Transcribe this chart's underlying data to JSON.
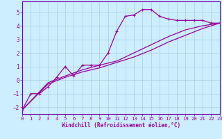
{
  "xlabel": "Windchill (Refroidissement éolien,°C)",
  "bg_color": "#cceeff",
  "grid_color": "#aaccdd",
  "line_color": "#990099",
  "spine_color": "#7700aa",
  "xlim": [
    0,
    23
  ],
  "ylim": [
    -2.5,
    5.8
  ],
  "xticks": [
    0,
    1,
    2,
    3,
    4,
    5,
    6,
    7,
    8,
    9,
    10,
    11,
    12,
    13,
    14,
    15,
    16,
    17,
    18,
    19,
    20,
    21,
    22,
    23
  ],
  "yticks": [
    -2,
    -1,
    0,
    1,
    2,
    3,
    4,
    5
  ],
  "series1": [
    [
      0,
      -2.2
    ],
    [
      1,
      -1.0
    ],
    [
      2,
      -1.0
    ],
    [
      3,
      -0.5
    ],
    [
      4,
      0.2
    ],
    [
      5,
      1.0
    ],
    [
      6,
      0.3
    ],
    [
      7,
      1.1
    ],
    [
      8,
      1.1
    ],
    [
      9,
      1.1
    ],
    [
      10,
      2.0
    ],
    [
      11,
      3.6
    ],
    [
      12,
      4.7
    ],
    [
      13,
      4.8
    ],
    [
      14,
      5.2
    ],
    [
      15,
      5.2
    ],
    [
      16,
      4.7
    ],
    [
      17,
      4.5
    ],
    [
      18,
      4.4
    ],
    [
      19,
      4.4
    ],
    [
      20,
      4.4
    ],
    [
      21,
      4.4
    ],
    [
      22,
      4.2
    ],
    [
      23,
      4.2
    ]
  ],
  "series2": [
    [
      0,
      -2.2
    ],
    [
      3,
      -0.3
    ],
    [
      5,
      0.2
    ],
    [
      7,
      0.6
    ],
    [
      9,
      0.9
    ],
    [
      11,
      1.3
    ],
    [
      13,
      1.7
    ],
    [
      15,
      2.2
    ],
    [
      17,
      2.8
    ],
    [
      19,
      3.3
    ],
    [
      21,
      3.8
    ],
    [
      23,
      4.2
    ]
  ],
  "series3": [
    [
      0,
      -2.2
    ],
    [
      3,
      -0.2
    ],
    [
      5,
      0.3
    ],
    [
      7,
      0.75
    ],
    [
      9,
      1.1
    ],
    [
      11,
      1.4
    ],
    [
      13,
      2.0
    ],
    [
      15,
      2.6
    ],
    [
      17,
      3.2
    ],
    [
      19,
      3.7
    ],
    [
      21,
      4.0
    ],
    [
      23,
      4.2
    ]
  ]
}
